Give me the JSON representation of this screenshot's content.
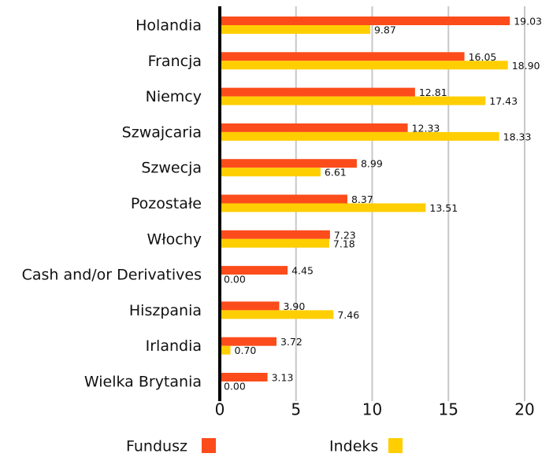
{
  "chart_data": {
    "type": "bar",
    "orientation": "horizontal",
    "categories": [
      "Holandia",
      "Francja",
      "Niemcy",
      "Szwajcaria",
      "Szwecja",
      "Pozostałe",
      "Włochy",
      "Cash and/or Derivatives",
      "Hiszpania",
      "Irlandia",
      "Wielka Brytania"
    ],
    "series": [
      {
        "name": "Fundusz",
        "color": "#fc4c1b",
        "values": [
          19.03,
          16.05,
          12.81,
          12.33,
          8.99,
          8.37,
          7.23,
          4.45,
          3.9,
          3.72,
          3.13
        ],
        "value_labels": [
          "19.03",
          "16.05",
          "12.81",
          "12.33",
          "8.99",
          "8.37",
          "7.23",
          "4.45",
          "3.90",
          "3.72",
          "3.13"
        ]
      },
      {
        "name": "Indeks",
        "color": "#ffce00",
        "values": [
          9.87,
          18.9,
          17.43,
          18.33,
          6.61,
          13.51,
          7.18,
          0.0,
          7.46,
          0.7,
          0.0
        ],
        "value_labels": [
          "9.87",
          "18.90",
          "17.43",
          "18.33",
          "6.61",
          "13.51",
          "7.18",
          "0.00",
          "7.46",
          "0.70",
          "0.00"
        ]
      }
    ],
    "xlim": [
      0,
      20
    ],
    "xticks": [
      0,
      5,
      10,
      15,
      20
    ],
    "grid": true,
    "legend": "bottom"
  }
}
